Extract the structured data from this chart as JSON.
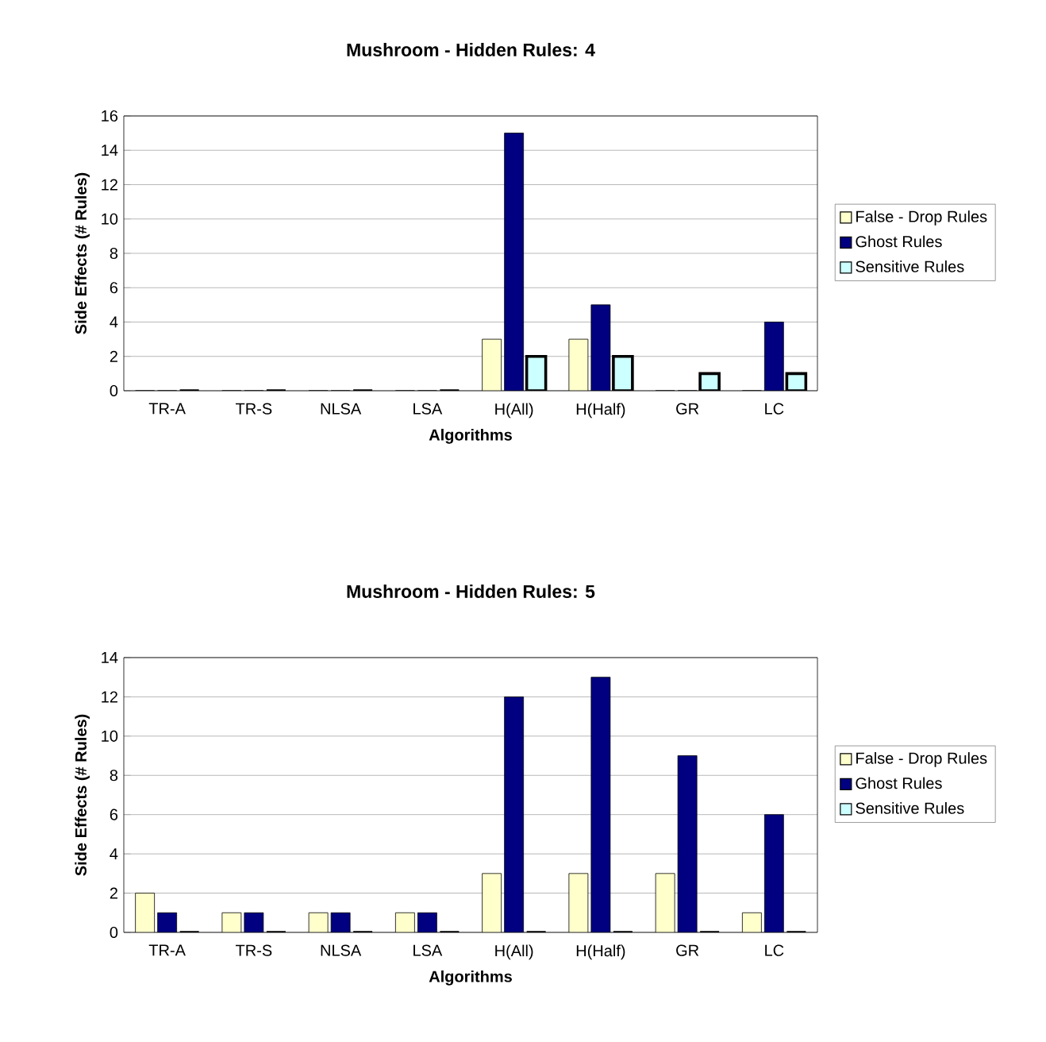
{
  "chart_data": [
    {
      "type": "bar",
      "title": "Mushroom - Hidden Rules: 4",
      "xlabel": "Algorithms",
      "ylabel": "Side Effects (# Rules)",
      "categories": [
        "TR-A",
        "TR-S",
        "NLSA",
        "LSA",
        "H(All)",
        "H(Half)",
        "GR",
        "LC"
      ],
      "ylim": [
        0,
        16
      ],
      "yticks": [
        0,
        2,
        4,
        6,
        8,
        10,
        12,
        14,
        16
      ],
      "grid": "y",
      "legend": "right",
      "series": [
        {
          "name": "False - Drop Rules",
          "color": "#ffffcc",
          "values": [
            0,
            0,
            0,
            0,
            3,
            3,
            0,
            0
          ]
        },
        {
          "name": "Ghost Rules",
          "color": "#000080",
          "values": [
            0,
            0,
            0,
            0,
            15,
            5,
            0,
            4
          ]
        },
        {
          "name": "Sensitive Rules",
          "color": "#ccffff",
          "values": [
            0,
            0,
            0,
            0,
            2,
            2,
            1,
            1
          ]
        }
      ]
    },
    {
      "type": "bar",
      "title": "Mushroom - Hidden Rules: 5",
      "xlabel": "Algorithms",
      "ylabel": "Side Effects (# Rules)",
      "categories": [
        "TR-A",
        "TR-S",
        "NLSA",
        "LSA",
        "H(All)",
        "H(Half)",
        "GR",
        "LC"
      ],
      "ylim": [
        0,
        14
      ],
      "yticks": [
        0,
        2,
        4,
        6,
        8,
        10,
        12,
        14
      ],
      "grid": "y",
      "legend": "right",
      "series": [
        {
          "name": "False - Drop Rules",
          "color": "#ffffcc",
          "values": [
            2,
            1,
            1,
            1,
            3,
            3,
            3,
            1
          ]
        },
        {
          "name": "Ghost Rules",
          "color": "#000080",
          "values": [
            1,
            1,
            1,
            1,
            12,
            13,
            9,
            6
          ]
        },
        {
          "name": "Sensitive Rules",
          "color": "#ccffff",
          "values": [
            0,
            0,
            0,
            0,
            0,
            0,
            0,
            0
          ]
        }
      ]
    }
  ]
}
